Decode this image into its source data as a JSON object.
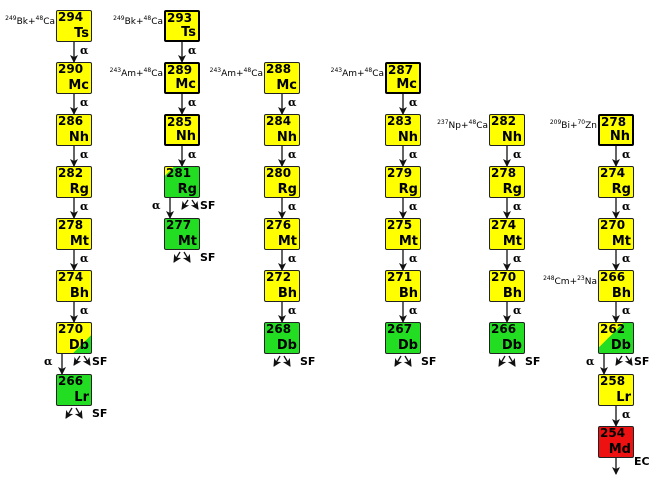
{
  "colors": {
    "alpha": "#ffff00",
    "sf": "#22dd22",
    "ec": "#ee1111"
  },
  "decay_labels": {
    "alpha": "α",
    "sf": "SF",
    "ec": "EC"
  },
  "columns": [
    {
      "start_row": 0,
      "nuclides": [
        {
          "mass": "294",
          "symbol": "Ts",
          "mode": "alpha",
          "reaction": {
            "target_mass": "249",
            "target": "Bk",
            "beam_mass": "48",
            "beam": "Ca"
          }
        },
        {
          "mass": "290",
          "symbol": "Mc",
          "mode": "alpha"
        },
        {
          "mass": "286",
          "symbol": "Nh",
          "mode": "alpha"
        },
        {
          "mass": "282",
          "symbol": "Rg",
          "mode": "alpha"
        },
        {
          "mass": "278",
          "symbol": "Mt",
          "mode": "alpha"
        },
        {
          "mass": "274",
          "symbol": "Bh",
          "mode": "alpha"
        },
        {
          "mass": "270",
          "symbol": "Db",
          "mode": "alpha+sf",
          "mix": "mostly-alpha"
        },
        {
          "mass": "266",
          "symbol": "Lr",
          "mode": "sf"
        }
      ]
    },
    {
      "start_row": 0,
      "nuclides": [
        {
          "mass": "293",
          "symbol": "Ts",
          "mode": "alpha",
          "thick": true,
          "reaction": {
            "target_mass": "249",
            "target": "Bk",
            "beam_mass": "48",
            "beam": "Ca"
          }
        },
        {
          "mass": "289",
          "symbol": "Mc",
          "mode": "alpha",
          "thick": true,
          "reaction": {
            "target_mass": "243",
            "target": "Am",
            "beam_mass": "48",
            "beam": "Ca"
          }
        },
        {
          "mass": "285",
          "symbol": "Nh",
          "mode": "alpha",
          "thick": true
        },
        {
          "mass": "281",
          "symbol": "Rg",
          "mode": "alpha+sf",
          "mix": "mostly-sf"
        },
        {
          "mass": "277",
          "symbol": "Mt",
          "mode": "sf"
        }
      ]
    },
    {
      "start_row": 1,
      "nuclides": [
        {
          "mass": "288",
          "symbol": "Mc",
          "mode": "alpha",
          "reaction": {
            "target_mass": "243",
            "target": "Am",
            "beam_mass": "48",
            "beam": "Ca"
          }
        },
        {
          "mass": "284",
          "symbol": "Nh",
          "mode": "alpha"
        },
        {
          "mass": "280",
          "symbol": "Rg",
          "mode": "alpha"
        },
        {
          "mass": "276",
          "symbol": "Mt",
          "mode": "alpha"
        },
        {
          "mass": "272",
          "symbol": "Bh",
          "mode": "alpha"
        },
        {
          "mass": "268",
          "symbol": "Db",
          "mode": "sf"
        }
      ]
    },
    {
      "start_row": 1,
      "nuclides": [
        {
          "mass": "287",
          "symbol": "Mc",
          "mode": "alpha",
          "thick": true,
          "reaction": {
            "target_mass": "243",
            "target": "Am",
            "beam_mass": "48",
            "beam": "Ca"
          }
        },
        {
          "mass": "283",
          "symbol": "Nh",
          "mode": "alpha"
        },
        {
          "mass": "279",
          "symbol": "Rg",
          "mode": "alpha"
        },
        {
          "mass": "275",
          "symbol": "Mt",
          "mode": "alpha"
        },
        {
          "mass": "271",
          "symbol": "Bh",
          "mode": "alpha"
        },
        {
          "mass": "267",
          "symbol": "Db",
          "mode": "sf"
        }
      ]
    },
    {
      "start_row": 2,
      "nuclides": [
        {
          "mass": "282",
          "symbol": "Nh",
          "mode": "alpha",
          "reaction": {
            "target_mass": "237",
            "target": "Np",
            "beam_mass": "48",
            "beam": "Ca"
          }
        },
        {
          "mass": "278",
          "symbol": "Rg",
          "mode": "alpha"
        },
        {
          "mass": "274",
          "symbol": "Mt",
          "mode": "alpha"
        },
        {
          "mass": "270",
          "symbol": "Bh",
          "mode": "alpha"
        },
        {
          "mass": "266",
          "symbol": "Db",
          "mode": "sf"
        }
      ]
    },
    {
      "start_row": 2,
      "nuclides": [
        {
          "mass": "278",
          "symbol": "Nh",
          "mode": "alpha",
          "thick": true,
          "reaction": {
            "target_mass": "209",
            "target": "Bi",
            "beam_mass": "70",
            "beam": "Zn"
          }
        },
        {
          "mass": "274",
          "symbol": "Rg",
          "mode": "alpha"
        },
        {
          "mass": "270",
          "symbol": "Mt",
          "mode": "alpha"
        },
        {
          "mass": "266",
          "symbol": "Bh",
          "mode": "alpha",
          "reaction": {
            "target_mass": "248",
            "target": "Cm",
            "beam_mass": "23",
            "beam": "Na"
          }
        },
        {
          "mass": "262",
          "symbol": "Db",
          "mode": "alpha+sf",
          "mix": "half"
        },
        {
          "mass": "258",
          "symbol": "Lr",
          "mode": "alpha"
        },
        {
          "mass": "254",
          "symbol": "Md",
          "mode": "ec"
        }
      ]
    }
  ]
}
